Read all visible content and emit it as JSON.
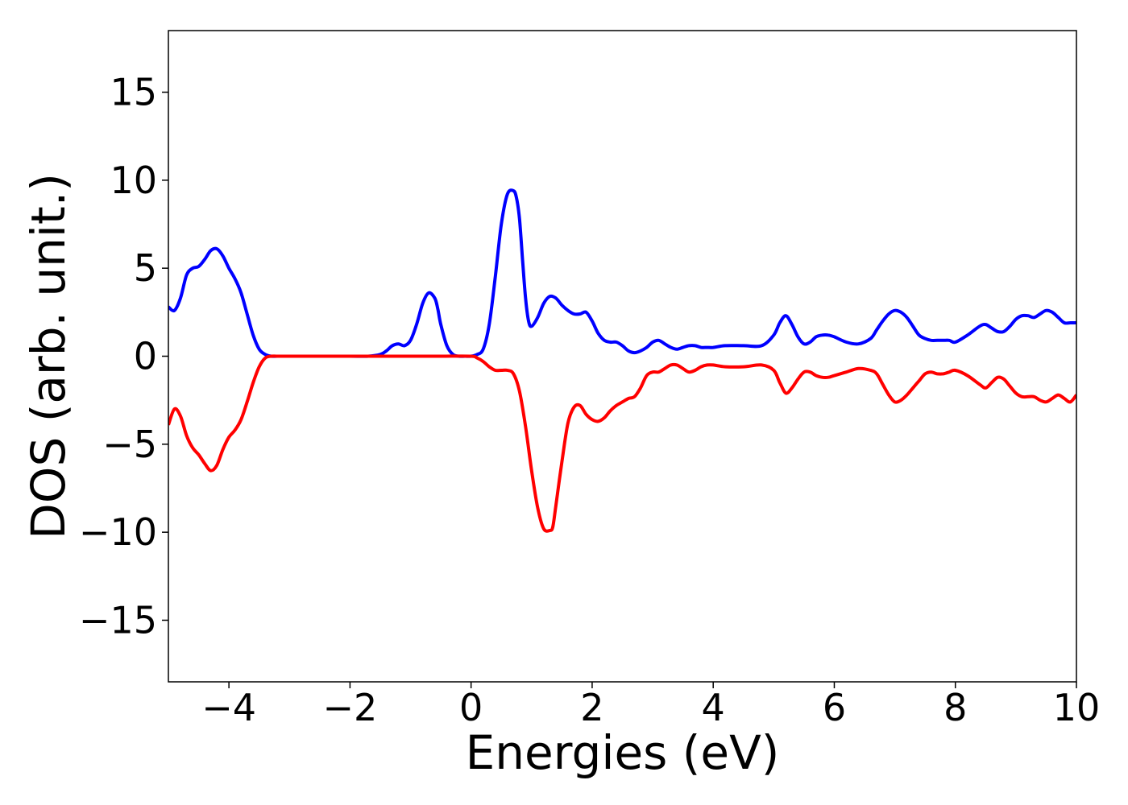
{
  "chart_data": {
    "type": "line",
    "title": "",
    "xlabel": "Energies (eV)",
    "ylabel": "DOS (arb. unit.)",
    "xlim": [
      -5,
      10
    ],
    "ylim": [
      -18.5,
      18.5
    ],
    "grid": false,
    "legend": "none",
    "x_ticks": [
      -4,
      -2,
      0,
      2,
      4,
      6,
      8,
      10
    ],
    "x_tick_labels": [
      "−4",
      "−2",
      "0",
      "2",
      "4",
      "6",
      "8",
      "10"
    ],
    "y_ticks": [
      -15,
      -10,
      -5,
      0,
      5,
      10,
      15
    ],
    "y_tick_labels": [
      "−15",
      "−10",
      "−5",
      "0",
      "5",
      "10",
      "15"
    ],
    "series": [
      {
        "color": "#0000ff",
        "x": [
          -5.0,
          -4.9,
          -4.8,
          -4.7,
          -4.6,
          -4.5,
          -4.4,
          -4.3,
          -4.2,
          -4.1,
          -4.0,
          -3.9,
          -3.8,
          -3.7,
          -3.6,
          -3.5,
          -3.4,
          -3.3,
          -3.2,
          -3.0,
          -2.5,
          -2.0,
          -1.7,
          -1.5,
          -1.4,
          -1.3,
          -1.2,
          -1.1,
          -1.0,
          -0.9,
          -0.8,
          -0.7,
          -0.6,
          -0.55,
          -0.5,
          -0.4,
          -0.3,
          -0.2,
          -0.1,
          0.0,
          0.1,
          0.2,
          0.3,
          0.4,
          0.5,
          0.6,
          0.7,
          0.75,
          0.8,
          0.85,
          0.9,
          0.95,
          1.0,
          1.1,
          1.2,
          1.3,
          1.4,
          1.5,
          1.6,
          1.7,
          1.8,
          1.9,
          2.0,
          2.1,
          2.2,
          2.3,
          2.4,
          2.5,
          2.6,
          2.7,
          2.8,
          2.9,
          3.0,
          3.1,
          3.2,
          3.3,
          3.4,
          3.5,
          3.6,
          3.7,
          3.8,
          3.9,
          4.0,
          4.2,
          4.5,
          4.8,
          5.0,
          5.1,
          5.2,
          5.3,
          5.4,
          5.5,
          5.6,
          5.7,
          5.8,
          5.9,
          6.0,
          6.2,
          6.4,
          6.6,
          6.7,
          6.8,
          6.9,
          7.0,
          7.1,
          7.2,
          7.3,
          7.4,
          7.5,
          7.6,
          7.7,
          7.8,
          7.9,
          8.0,
          8.2,
          8.4,
          8.5,
          8.6,
          8.7,
          8.8,
          8.9,
          9.0,
          9.1,
          9.2,
          9.3,
          9.4,
          9.5,
          9.6,
          9.7,
          9.8,
          9.9,
          10.0
        ],
        "y": [
          2.8,
          2.6,
          3.3,
          4.6,
          5.0,
          5.1,
          5.5,
          6.0,
          6.1,
          5.7,
          5.0,
          4.4,
          3.6,
          2.4,
          1.2,
          0.4,
          0.1,
          0.0,
          0.0,
          0.0,
          0.0,
          0.0,
          0.0,
          0.1,
          0.3,
          0.6,
          0.7,
          0.6,
          0.9,
          1.8,
          3.0,
          3.6,
          3.3,
          2.7,
          1.8,
          0.6,
          0.1,
          0.0,
          0.0,
          0.0,
          0.1,
          0.4,
          1.8,
          4.5,
          7.5,
          9.2,
          9.4,
          9.0,
          7.8,
          5.5,
          3.3,
          2.0,
          1.7,
          2.2,
          3.0,
          3.4,
          3.3,
          2.9,
          2.6,
          2.4,
          2.4,
          2.5,
          2.0,
          1.3,
          0.9,
          0.8,
          0.8,
          0.6,
          0.3,
          0.2,
          0.3,
          0.5,
          0.8,
          0.9,
          0.7,
          0.5,
          0.4,
          0.5,
          0.6,
          0.6,
          0.5,
          0.5,
          0.5,
          0.6,
          0.6,
          0.6,
          1.2,
          1.9,
          2.3,
          1.8,
          1.1,
          0.7,
          0.8,
          1.1,
          1.2,
          1.2,
          1.1,
          0.8,
          0.7,
          1.0,
          1.5,
          2.0,
          2.4,
          2.6,
          2.5,
          2.2,
          1.7,
          1.2,
          1.0,
          0.9,
          0.9,
          0.9,
          0.9,
          0.8,
          1.2,
          1.7,
          1.8,
          1.6,
          1.4,
          1.4,
          1.7,
          2.1,
          2.3,
          2.3,
          2.2,
          2.4,
          2.6,
          2.5,
          2.2,
          1.9,
          1.9,
          1.9
        ]
      },
      {
        "color": "#ff0000",
        "x": [
          -5.0,
          -4.9,
          -4.8,
          -4.7,
          -4.6,
          -4.5,
          -4.4,
          -4.3,
          -4.2,
          -4.1,
          -4.0,
          -3.9,
          -3.8,
          -3.7,
          -3.6,
          -3.5,
          -3.4,
          -3.3,
          -3.2,
          -3.0,
          -2.5,
          -2.0,
          -1.0,
          -0.5,
          0.0,
          0.1,
          0.2,
          0.3,
          0.4,
          0.5,
          0.6,
          0.7,
          0.8,
          0.9,
          1.0,
          1.1,
          1.2,
          1.3,
          1.35,
          1.4,
          1.5,
          1.6,
          1.7,
          1.8,
          1.9,
          2.0,
          2.1,
          2.2,
          2.3,
          2.4,
          2.5,
          2.6,
          2.7,
          2.8,
          2.9,
          3.0,
          3.1,
          3.2,
          3.3,
          3.4,
          3.5,
          3.6,
          3.7,
          3.8,
          3.9,
          4.0,
          4.2,
          4.5,
          4.8,
          5.0,
          5.1,
          5.2,
          5.3,
          5.4,
          5.5,
          5.6,
          5.7,
          5.8,
          5.9,
          6.0,
          6.2,
          6.4,
          6.6,
          6.7,
          6.8,
          6.9,
          7.0,
          7.1,
          7.2,
          7.3,
          7.4,
          7.5,
          7.6,
          7.7,
          7.8,
          7.9,
          8.0,
          8.2,
          8.4,
          8.5,
          8.6,
          8.7,
          8.8,
          8.9,
          9.0,
          9.1,
          9.2,
          9.3,
          9.4,
          9.5,
          9.6,
          9.7,
          9.8,
          9.9,
          10.0
        ],
        "y": [
          -3.9,
          -3.0,
          -3.4,
          -4.5,
          -5.2,
          -5.6,
          -6.1,
          -6.5,
          -6.2,
          -5.3,
          -4.6,
          -4.2,
          -3.6,
          -2.6,
          -1.5,
          -0.6,
          -0.1,
          0.0,
          0.0,
          0.0,
          0.0,
          0.0,
          0.0,
          0.0,
          0.0,
          -0.1,
          -0.3,
          -0.6,
          -0.8,
          -0.8,
          -0.8,
          -1.0,
          -2.0,
          -4.0,
          -6.5,
          -8.6,
          -9.8,
          -9.9,
          -9.7,
          -8.5,
          -6.0,
          -3.8,
          -2.9,
          -2.8,
          -3.3,
          -3.6,
          -3.7,
          -3.5,
          -3.1,
          -2.8,
          -2.6,
          -2.4,
          -2.3,
          -1.8,
          -1.1,
          -0.9,
          -0.9,
          -0.7,
          -0.5,
          -0.5,
          -0.7,
          -0.9,
          -0.8,
          -0.6,
          -0.5,
          -0.5,
          -0.6,
          -0.6,
          -0.5,
          -0.8,
          -1.5,
          -2.1,
          -1.8,
          -1.3,
          -0.9,
          -0.9,
          -1.1,
          -1.2,
          -1.2,
          -1.1,
          -0.9,
          -0.7,
          -0.8,
          -1.0,
          -1.6,
          -2.2,
          -2.6,
          -2.5,
          -2.2,
          -1.8,
          -1.4,
          -1.0,
          -0.9,
          -1.0,
          -1.0,
          -0.9,
          -0.8,
          -1.1,
          -1.6,
          -1.8,
          -1.5,
          -1.2,
          -1.3,
          -1.7,
          -2.1,
          -2.3,
          -2.3,
          -2.3,
          -2.5,
          -2.6,
          -2.4,
          -2.2,
          -2.4,
          -2.6,
          -2.2
        ]
      }
    ]
  }
}
